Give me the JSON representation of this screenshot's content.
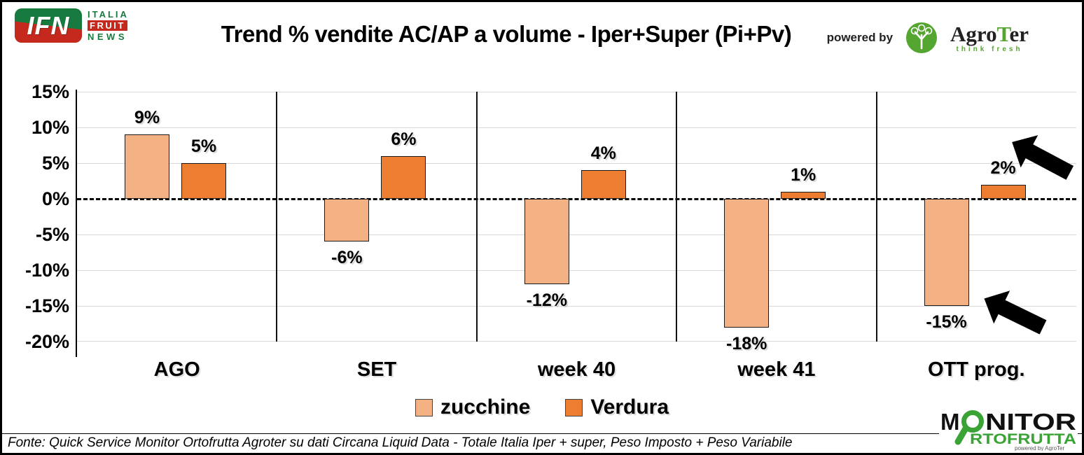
{
  "header": {
    "ifn": {
      "abbr": "IFN",
      "line1": "ITALIA",
      "line2": "FRUIT",
      "line3": "NEWS",
      "green": "#177b3f",
      "red": "#c5281c"
    },
    "powered_by": "powered by",
    "agroter": {
      "name_prefix": "Agro",
      "name_t": "T",
      "name_suffix": "er",
      "tagline": "think fresh",
      "green": "#55a630"
    }
  },
  "chart_data": {
    "type": "bar",
    "title": "Trend % vendite AC/AP a volume -  Iper+Super (Pi+Pv)",
    "categories": [
      "AGO",
      "SET",
      "week 40",
      "week 41",
      "OTT prog."
    ],
    "series": [
      {
        "name": "zucchine",
        "color": "#F4B183",
        "values": [
          9,
          -6,
          -12,
          -18,
          -15
        ]
      },
      {
        "name": "Verdura",
        "color": "#ED7D31",
        "values": [
          5,
          6,
          4,
          1,
          2
        ]
      }
    ],
    "value_label_suffix": "%",
    "yticks": [
      15,
      10,
      5,
      0,
      -5,
      -10,
      -15,
      -20
    ],
    "ytick_suffix": "%",
    "ylim": [
      -20,
      15
    ],
    "grid": true,
    "gridline_color": "#d9d9d9",
    "zero_line": "dashed-black",
    "legend_position": "bottom-center",
    "annotations": [
      {
        "type": "arrow",
        "color": "#000000",
        "direction": "down-left",
        "target": "Verdura 2% bar (OTT prog.)"
      },
      {
        "type": "arrow",
        "color": "#000000",
        "direction": "down-left",
        "target": "zucchine -15% label (OTT prog.)"
      }
    ]
  },
  "footer": {
    "source": "Fonte: Quick Service Monitor Ortofrutta Agroter su dati Circana Liquid Data - Totale Italia Iper + super, Peso Imposto + Peso Variabile"
  },
  "monitor_logo": {
    "line1_prefix": "M",
    "line1_suffix": "NITOR",
    "line2": "RTOFRUTTA",
    "powered": "powered by AgroTer",
    "green": "#3aa335"
  }
}
